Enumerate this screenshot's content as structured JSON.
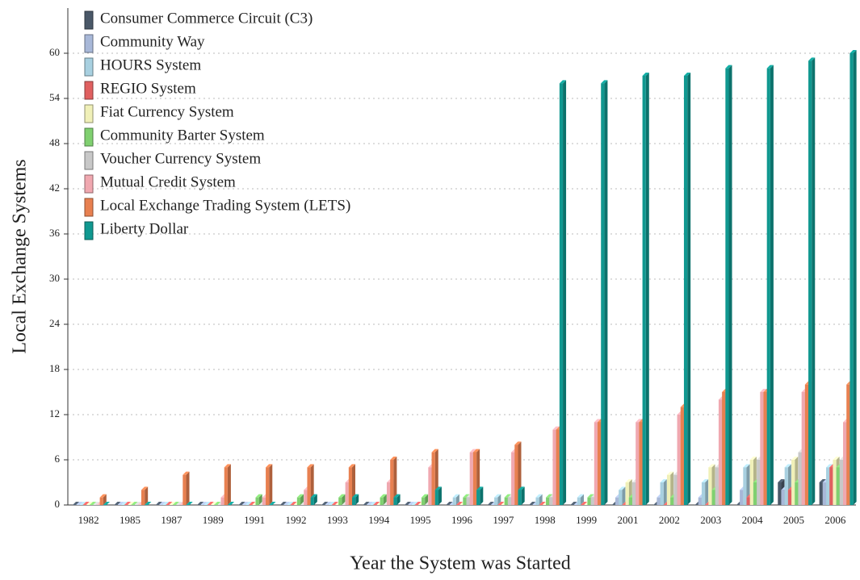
{
  "chart_data": {
    "type": "bar3d",
    "x_label": "Year the System was Started",
    "y_label": "Local Exchange Systems",
    "categories": [
      "1982",
      "1985",
      "1987",
      "1989",
      "1991",
      "1992",
      "1993",
      "1994",
      "1995",
      "1996",
      "1997",
      "1998",
      "1999",
      "2001",
      "2002",
      "2003",
      "2004",
      "2005",
      "2006"
    ],
    "ylim": [
      0,
      66
    ],
    "yticks": [
      0,
      6,
      12,
      18,
      24,
      30,
      36,
      42,
      48,
      54,
      60
    ],
    "grid": true,
    "legend": "top-left",
    "series": [
      {
        "name": "Consumer Commerce Circuit (C3)",
        "color": "#4a5868",
        "values": [
          0,
          0,
          0,
          0,
          0,
          0,
          0,
          0,
          0,
          0,
          0,
          0,
          0,
          0,
          0,
          0,
          0,
          3,
          3
        ]
      },
      {
        "name": "Community Way",
        "color": "#a8b8d8",
        "values": [
          0,
          0,
          0,
          0,
          0,
          0,
          0,
          0,
          0,
          0,
          0,
          0,
          0,
          1,
          1,
          1,
          2,
          2,
          3
        ]
      },
      {
        "name": "HOURS System",
        "color": "#a8d0e0",
        "values": [
          0,
          0,
          0,
          0,
          0,
          0,
          0,
          0,
          0,
          1,
          1,
          1,
          1,
          2,
          3,
          3,
          5,
          5,
          5
        ]
      },
      {
        "name": "REGIO System",
        "color": "#e06060",
        "values": [
          0,
          0,
          0,
          0,
          0,
          0,
          0,
          0,
          0,
          0,
          0,
          0,
          0,
          0,
          0,
          0,
          1,
          2,
          5
        ]
      },
      {
        "name": "Fiat Currency System",
        "color": "#f0f0b8",
        "values": [
          0,
          0,
          0,
          0,
          0,
          0,
          0,
          0,
          0,
          0,
          0,
          0,
          0,
          3,
          4,
          5,
          6,
          6,
          6
        ]
      },
      {
        "name": "Community Barter System",
        "color": "#80d070",
        "values": [
          0,
          0,
          0,
          0,
          1,
          1,
          1,
          1,
          1,
          1,
          1,
          1,
          1,
          1,
          1,
          2,
          3,
          3,
          5
        ]
      },
      {
        "name": "Voucher Currency System",
        "color": "#c8c8c8",
        "values": [
          0,
          0,
          0,
          0,
          0,
          0,
          0,
          0,
          0,
          1,
          1,
          1,
          1,
          3,
          4,
          5,
          6,
          7,
          6
        ]
      },
      {
        "name": "Mutual Credit System",
        "color": "#f0a8b0",
        "values": [
          0,
          0,
          0,
          1,
          1,
          2,
          3,
          3,
          5,
          7,
          7,
          10,
          11,
          11,
          12,
          14,
          15,
          15,
          11
        ]
      },
      {
        "name": "Local Exchange Trading System  (LETS)",
        "color": "#e88050",
        "values": [
          1,
          2,
          4,
          5,
          5,
          5,
          5,
          6,
          7,
          7,
          8,
          10,
          11,
          11,
          13,
          15,
          15,
          16,
          16
        ]
      },
      {
        "name": "Liberty Dollar",
        "color": "#109890",
        "values": [
          0,
          0,
          0,
          0,
          0,
          1,
          1,
          1,
          2,
          2,
          2,
          56,
          56,
          57,
          57,
          58,
          58,
          59,
          60
        ]
      }
    ]
  }
}
